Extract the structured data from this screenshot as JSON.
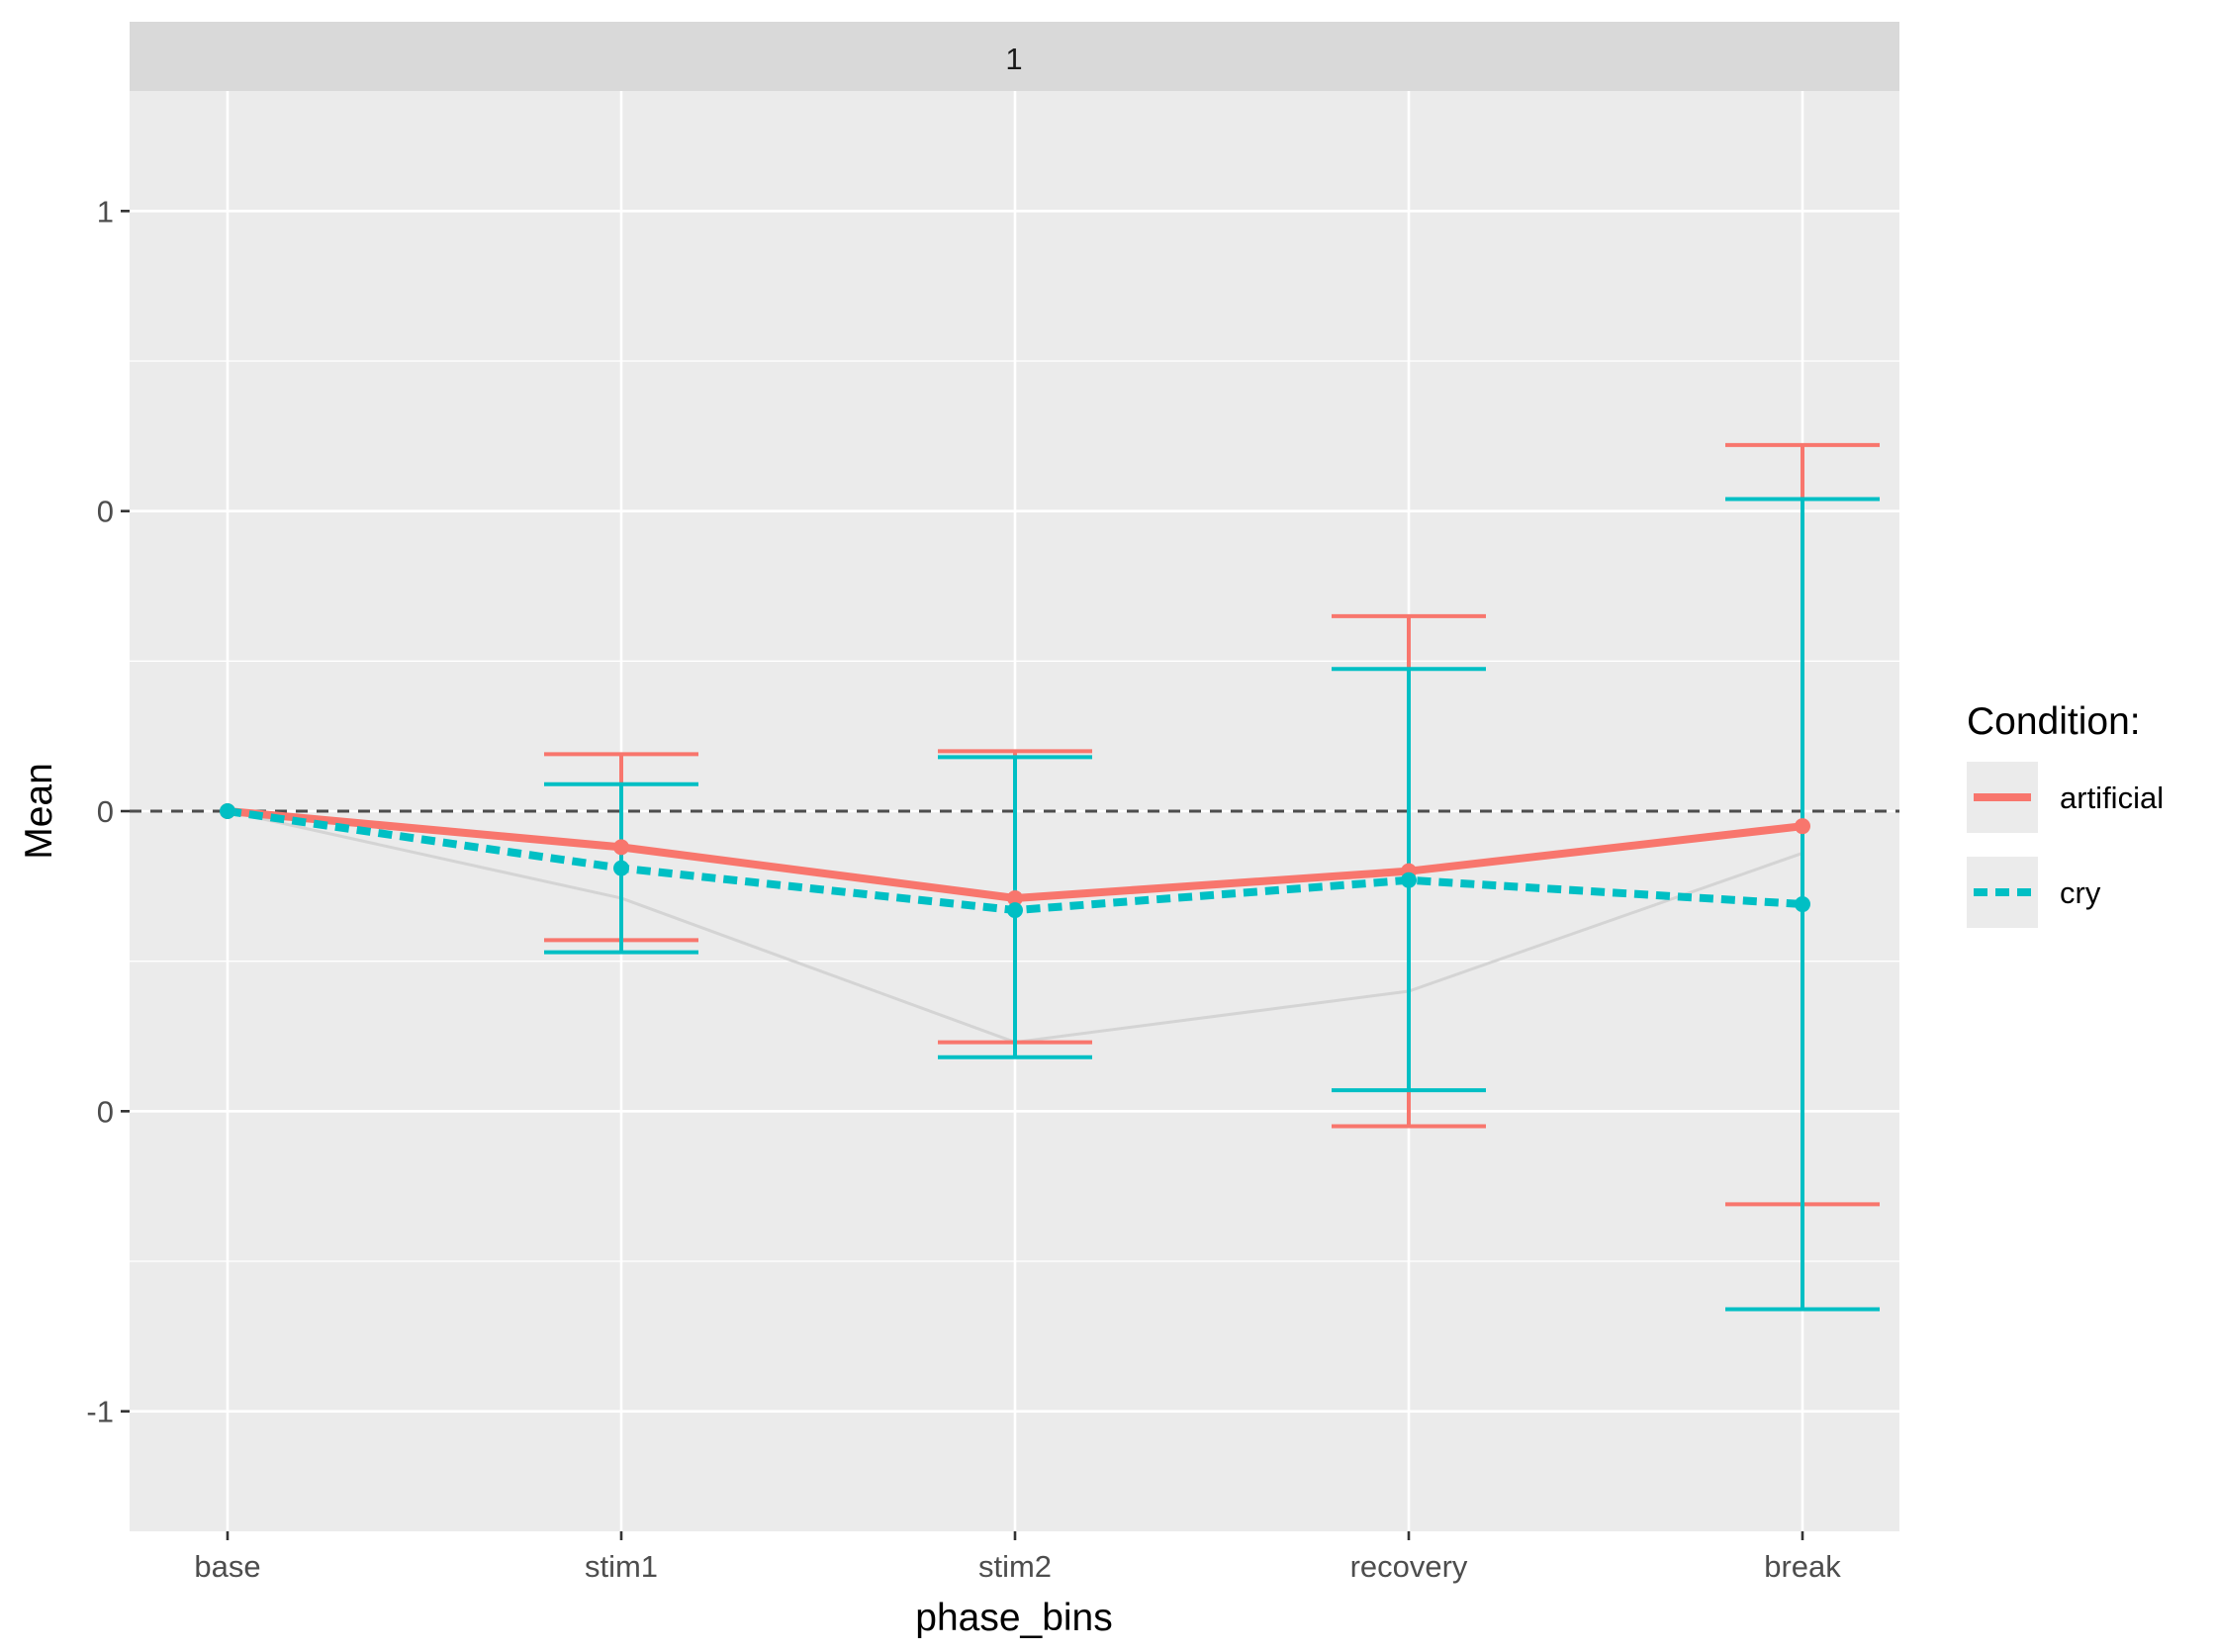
{
  "chart_data": {
    "type": "line",
    "facet_label": "1",
    "xlabel": "phase_bins",
    "ylabel": "Mean",
    "categories": [
      "base",
      "stim1",
      "stim2",
      "recovery",
      "break"
    ],
    "ylim": [
      -1.2,
      1.2
    ],
    "y_ticks": [
      1,
      0.5,
      0,
      -0.5,
      -1
    ],
    "y_tick_labels": [
      "1",
      "0",
      "0",
      "0",
      "-1"
    ],
    "reference_line": 0,
    "legend_title": "Condition:",
    "colors": {
      "artificial": "#F8766D",
      "cry": "#00BFC4",
      "background_trend": "#d4d4d4"
    },
    "series": [
      {
        "name": "artificial",
        "linetype": "solid",
        "values": [
          0.0,
          -0.06,
          -0.145,
          -0.1,
          -0.025
        ],
        "ci_low": [
          0.0,
          -0.215,
          -0.385,
          -0.525,
          -0.655
        ],
        "ci_high": [
          0.0,
          0.095,
          0.1,
          0.325,
          0.61
        ]
      },
      {
        "name": "cry",
        "linetype": "dashed",
        "values": [
          0.0,
          -0.095,
          -0.165,
          -0.115,
          -0.155
        ],
        "ci_low": [
          0.0,
          -0.235,
          -0.41,
          -0.465,
          -0.83
        ],
        "ci_high": [
          0.0,
          0.045,
          0.09,
          0.237,
          0.52
        ]
      },
      {
        "name": "background_trend",
        "linetype": "thin",
        "values": [
          0.0,
          -0.145,
          -0.385,
          -0.3,
          -0.07
        ]
      }
    ]
  }
}
